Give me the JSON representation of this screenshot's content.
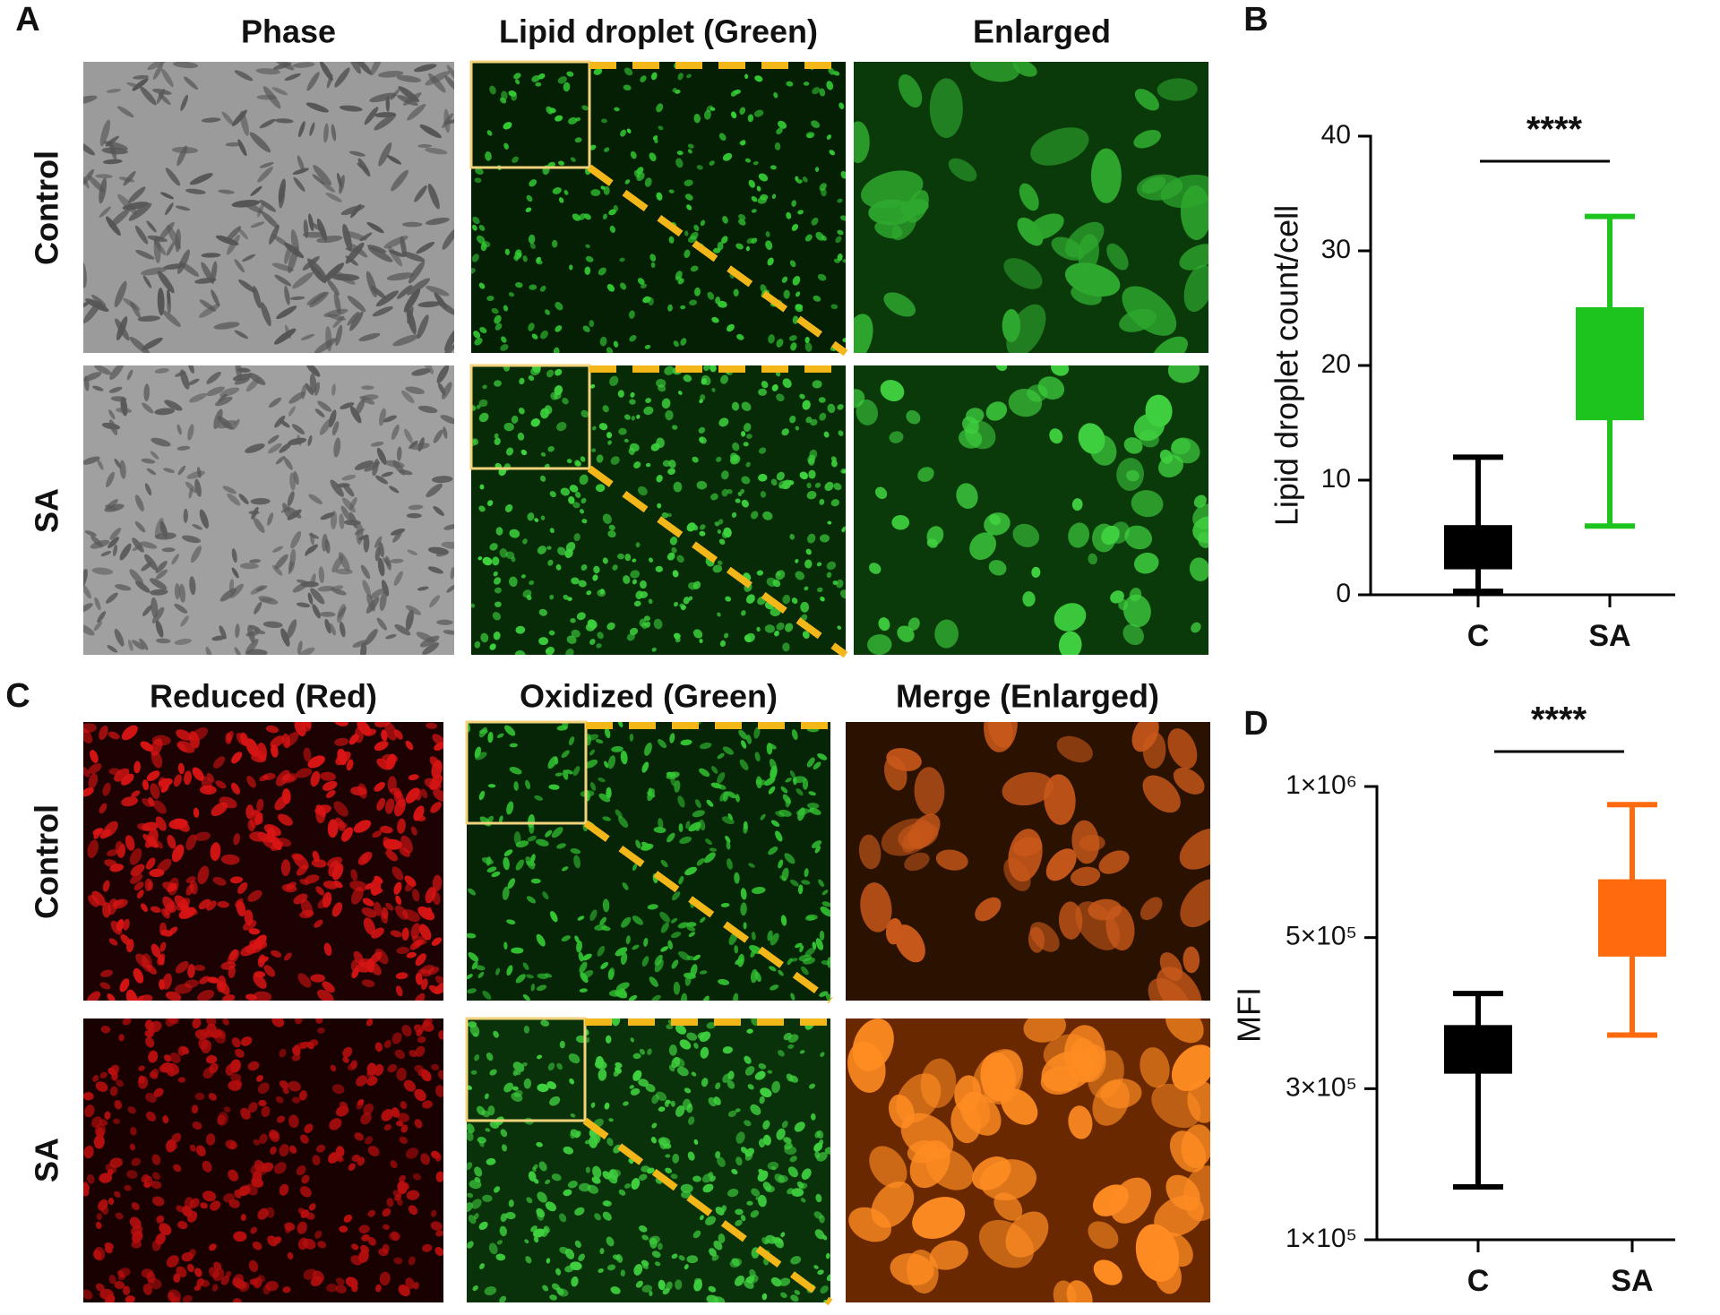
{
  "panel_labels": [
    "A",
    "B",
    "C",
    "D"
  ],
  "panel_a": {
    "columns": [
      "Phase",
      "Lipid droplet (Green)",
      "Enlarged"
    ],
    "rows": [
      "Control",
      "SA"
    ]
  },
  "panel_c": {
    "columns": [
      "Reduced (Red)",
      "Oxidized (Green)",
      "Merge (Enlarged)"
    ],
    "rows": [
      "Control",
      "SA"
    ]
  },
  "chart_data": [
    {
      "type": "box",
      "y_label": "Lipid droplet count/cell",
      "annotation": "****",
      "categories": [
        "C",
        "SA"
      ],
      "colors": [
        "#000000",
        "#1ec41e"
      ],
      "values": [
        {
          "min": 0.3,
          "q1": 2.3,
          "median": 4,
          "q3": 6,
          "max": 12
        },
        {
          "min": 6,
          "q1": 15.3,
          "median": 20,
          "q3": 25,
          "max": 33
        }
      ],
      "ylim": [
        0,
        40
      ],
      "yticks": [
        0,
        10,
        20,
        30,
        40
      ]
    },
    {
      "type": "box",
      "y_label": "MFI",
      "annotation": "****",
      "categories": [
        "C",
        "SA"
      ],
      "colors": [
        "#000000",
        "#ff6a0e"
      ],
      "values": [
        {
          "min": 170000,
          "q1": 321000,
          "median": 350000,
          "q3": 383000,
          "max": 426000
        },
        {
          "min": 371000,
          "q1": 476000,
          "median": 580000,
          "q3": 690000,
          "max": 940000
        }
      ],
      "ylim": [
        100000,
        1000000
      ],
      "yticks": [
        {
          "value": 100000,
          "label": "1×10⁵"
        },
        {
          "value": 300000,
          "label": "3×10⁵"
        },
        {
          "value": 500000,
          "label": "5×10⁵"
        },
        {
          "value": 1000000,
          "label": "1×10⁶"
        }
      ]
    }
  ]
}
